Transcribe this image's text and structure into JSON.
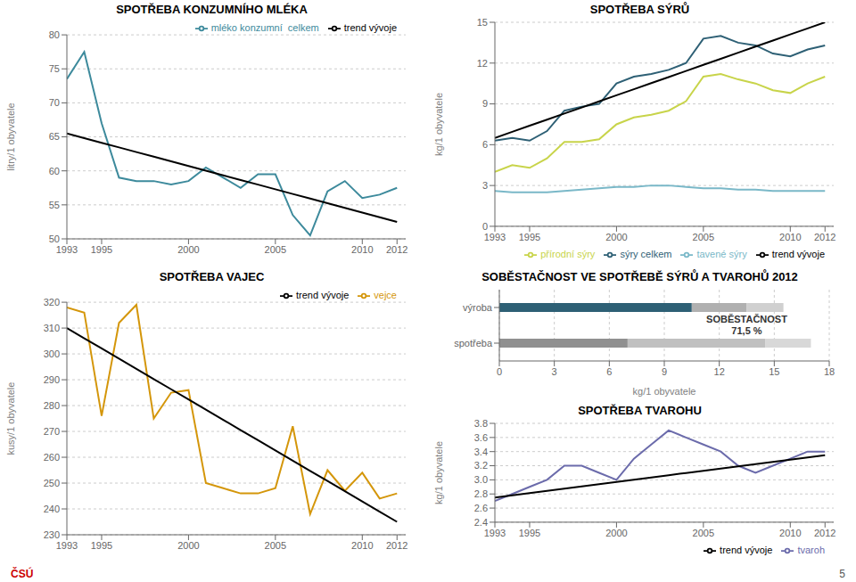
{
  "chart_data": [
    {
      "type": "line",
      "title": "SPOTŘEBA KONZUMNÍHO MLÉKA",
      "ylabel": "litry/1 obyvatele",
      "x": [
        1993,
        1994,
        1995,
        1996,
        1997,
        1998,
        1999,
        2000,
        2001,
        2002,
        2003,
        2004,
        2005,
        2006,
        2007,
        2008,
        2009,
        2010,
        2011,
        2012
      ],
      "series": [
        {
          "name": "mléko konzumní  celkem",
          "color": "#3d8a9c",
          "values": [
            73.5,
            77.5,
            67.0,
            59.0,
            58.5,
            58.5,
            58.0,
            58.5,
            60.5,
            59.0,
            57.5,
            59.5,
            59.5,
            53.5,
            50.5,
            57.0,
            58.5,
            56.0,
            56.5,
            57.5
          ]
        },
        {
          "name": "trend vývoje",
          "color": "#000000",
          "values": [
            65.5,
            64.815789474,
            64.131578947,
            63.447368421,
            62.763157895,
            62.078947368,
            61.394736842,
            60.710526316,
            60.026315789,
            59.342105263,
            58.657894737,
            57.973684211,
            57.289473684,
            56.605263158,
            55.921052632,
            55.236842105,
            54.552631579,
            53.868421053,
            53.184210526,
            52.5
          ]
        }
      ],
      "xlim": [
        1993,
        2012.5
      ],
      "xticks": [
        1993,
        1995,
        2000,
        2005,
        2010,
        2012
      ],
      "ylim": [
        50,
        80
      ],
      "yticks": [
        50,
        55,
        60,
        65,
        70,
        75,
        80
      ],
      "grid": "y",
      "legend": "upper right"
    },
    {
      "type": "line",
      "title": "SPOTŘEBA SÝRŮ",
      "ylabel": "kg/1 obyvatele",
      "x": [
        1993,
        1994,
        1995,
        1996,
        1997,
        1998,
        1999,
        2000,
        2001,
        2002,
        2003,
        2004,
        2005,
        2006,
        2007,
        2008,
        2009,
        2010,
        2011,
        2012
      ],
      "series": [
        {
          "name": "sýry celkem",
          "color": "#2e6075",
          "values": [
            6.3,
            6.5,
            6.3,
            7.0,
            8.5,
            8.8,
            9.0,
            10.5,
            11.0,
            11.2,
            11.5,
            12.0,
            13.8,
            14.0,
            13.5,
            13.3,
            12.7,
            12.5,
            13.0,
            13.3
          ]
        },
        {
          "name": "tavené sýry",
          "color": "#7ab8c8",
          "values": [
            2.6,
            2.5,
            2.5,
            2.5,
            2.6,
            2.7,
            2.8,
            2.9,
            2.9,
            3.0,
            3.0,
            2.9,
            2.8,
            2.8,
            2.7,
            2.7,
            2.6,
            2.6,
            2.6,
            2.6
          ]
        },
        {
          "name": "přírodní sýry",
          "color": "#c8d44a",
          "values": [
            4.0,
            4.5,
            4.3,
            5.0,
            6.2,
            6.2,
            6.4,
            7.5,
            8.0,
            8.2,
            8.5,
            9.2,
            11.0,
            11.2,
            10.8,
            10.5,
            10.0,
            9.8,
            10.5,
            11.0
          ]
        },
        {
          "name": "trend vývoje",
          "color": "#000000",
          "values": [
            6.5,
            6.947368421,
            7.394736842,
            7.842105263,
            8.289473684,
            8.736842105,
            9.184210526,
            9.631578947,
            10.078947368,
            10.526315789,
            10.973684211,
            11.421052632,
            11.868421053,
            12.315789474,
            12.763157895,
            13.210526316,
            13.657894737,
            14.105263158,
            14.552631579,
            15.0
          ]
        }
      ],
      "xlim": [
        1993,
        2012.5
      ],
      "xticks": [
        1993,
        1995,
        2000,
        2005,
        2010,
        2012
      ],
      "ylim": [
        0,
        15
      ],
      "yticks": [
        0,
        3,
        6,
        9,
        12,
        15
      ],
      "grid": "y",
      "legend": "lower right"
    },
    {
      "type": "line",
      "title": "SPOTŘEBA VAJEC",
      "ylabel": "kusy/1 obyvatele",
      "x": [
        1993,
        1994,
        1995,
        1996,
        1997,
        1998,
        1999,
        2000,
        2001,
        2002,
        2003,
        2004,
        2005,
        2006,
        2007,
        2008,
        2009,
        2010,
        2011,
        2012
      ],
      "series": [
        {
          "name": "vejce",
          "color": "#d4960a",
          "values": [
            318,
            316,
            276,
            312,
            319,
            275,
            285,
            286,
            250,
            248,
            246,
            246,
            248,
            272,
            238,
            255,
            247,
            254,
            244,
            246
          ]
        },
        {
          "name": "trend vývoje",
          "color": "#000000",
          "values": [
            310,
            306.052631579,
            302.105263158,
            298.157894737,
            294.210526316,
            290.263157895,
            286.315789474,
            282.368421053,
            278.421052632,
            274.473684211,
            270.526315789,
            266.578947368,
            262.631578947,
            258.684210526,
            254.736842105,
            250.789473684,
            246.842105263,
            242.894736842,
            238.947368421,
            235
          ]
        }
      ],
      "xlim": [
        1993,
        2012.5
      ],
      "xticks": [
        1993,
        1995,
        2000,
        2005,
        2010,
        2012
      ],
      "ylim": [
        230,
        320
      ],
      "yticks": [
        230,
        240,
        250,
        260,
        270,
        280,
        290,
        300,
        310,
        320
      ],
      "grid": "y",
      "legend": "upper right"
    },
    {
      "type": "bar",
      "orientation": "horizontal",
      "stacked": true,
      "title": "SOBĚSTAČNOST VE SPOTŘEBĚ SÝRŮ A TVAROHŮ 2012",
      "xlabel": "kg/1 obyvatele",
      "categories": [
        "spotřeba",
        "výroba"
      ],
      "series": [
        {
          "colors": [
            "#909090",
            "#2e6075"
          ],
          "values": [
            7.0,
            10.5
          ]
        },
        {
          "colors": [
            "#c0c0c0",
            "#b0b0b0"
          ],
          "values": [
            7.5,
            3.0
          ]
        },
        {
          "colors": [
            "#d8d8d8",
            "#d0d0d0"
          ],
          "values": [
            2.5,
            2.0
          ]
        }
      ],
      "xlim": [
        0,
        18
      ],
      "xticks": [
        0,
        3,
        6,
        9,
        12,
        15,
        18
      ],
      "grid": "x",
      "annotations": [
        {
          "text": "SOBĚSTAČNOST\n71,5 %",
          "x": 13.5,
          "color": "#333333"
        }
      ]
    },
    {
      "type": "line",
      "title": "SPOTŘEBA TVAROHU",
      "ylabel": "kg/1 obyvatele",
      "x": [
        1993,
        1994,
        1995,
        1996,
        1997,
        1998,
        1999,
        2000,
        2001,
        2002,
        2003,
        2004,
        2005,
        2006,
        2007,
        2008,
        2009,
        2010,
        2011,
        2012
      ],
      "series": [
        {
          "name": "tvaroh",
          "color": "#6b6bab",
          "values": [
            2.7,
            2.8,
            2.9,
            3.0,
            3.2,
            3.2,
            3.1,
            3.0,
            3.3,
            3.5,
            3.7,
            3.6,
            3.5,
            3.4,
            3.2,
            3.1,
            3.2,
            3.3,
            3.4,
            3.4
          ]
        },
        {
          "name": "trend vývoje",
          "color": "#000000",
          "values": [
            2.75,
            2.781578947,
            2.813157895,
            2.844736842,
            2.876315789,
            2.907894737,
            2.939473684,
            2.971052632,
            3.002631579,
            3.034210526,
            3.065789474,
            3.097368421,
            3.128947368,
            3.160526316,
            3.192105263,
            3.223684211,
            3.255263158,
            3.286842105,
            3.318421053,
            3.35
          ]
        }
      ],
      "xlim": [
        1993,
        2012.5
      ],
      "xticks": [
        1993,
        1995,
        2000,
        2005,
        2010,
        2012
      ],
      "ylim": [
        2.4,
        3.8
      ],
      "yticks": [
        2.4,
        2.6,
        2.8,
        {
          "value": 3.0,
          "label": "3.0"
        },
        3.2,
        3.4,
        3.6,
        3.8
      ],
      "grid": "y",
      "legend": "lower right"
    }
  ],
  "annotations": [
    {
      "text": "ČSÚ",
      "color": "#cc0000"
    },
    {
      "text": "5",
      "color": "#555555"
    }
  ]
}
